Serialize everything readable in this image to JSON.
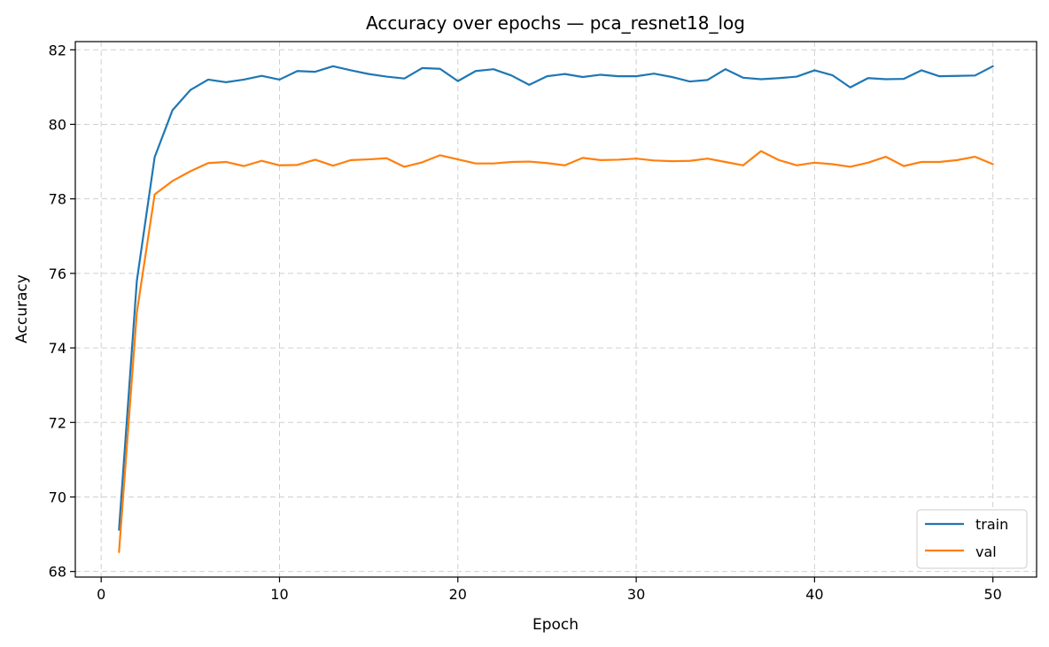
{
  "chart_data": {
    "type": "line",
    "title": "Accuracy over epochs — pca_resnet18_log",
    "xlabel": "Epoch",
    "ylabel": "Accuracy",
    "xlim": [
      -1.45,
      52.45
    ],
    "ylim": [
      67.85,
      82.22
    ],
    "xticks": [
      0,
      10,
      20,
      30,
      40,
      50
    ],
    "yticks": [
      68,
      70,
      72,
      74,
      76,
      78,
      80,
      82
    ],
    "grid": true,
    "legend_position": "lower-right",
    "x": [
      1,
      2,
      3,
      4,
      5,
      6,
      7,
      8,
      9,
      10,
      11,
      12,
      13,
      14,
      15,
      16,
      17,
      18,
      19,
      20,
      21,
      22,
      23,
      24,
      25,
      26,
      27,
      28,
      29,
      30,
      31,
      32,
      33,
      34,
      35,
      36,
      37,
      38,
      39,
      40,
      41,
      42,
      43,
      44,
      45,
      46,
      47,
      48,
      49,
      50
    ],
    "series": [
      {
        "name": "train",
        "color": "#1f77b4",
        "values": [
          69.12,
          75.8,
          79.12,
          80.38,
          80.92,
          81.2,
          81.13,
          81.2,
          81.3,
          81.2,
          81.43,
          81.41,
          81.56,
          81.45,
          81.35,
          81.28,
          81.23,
          81.51,
          81.49,
          81.16,
          81.43,
          81.48,
          81.31,
          81.06,
          81.29,
          81.35,
          81.27,
          81.33,
          81.29,
          81.29,
          81.36,
          81.27,
          81.15,
          81.19,
          81.48,
          81.25,
          81.21,
          81.24,
          81.28,
          81.45,
          81.32,
          80.99,
          81.24,
          81.21,
          81.22,
          81.45,
          81.29,
          81.3,
          81.31,
          81.56
        ]
      },
      {
        "name": "val",
        "color": "#ff7f0e",
        "values": [
          68.52,
          74.95,
          78.12,
          78.48,
          78.74,
          78.96,
          78.99,
          78.88,
          79.02,
          78.9,
          78.91,
          79.05,
          78.89,
          79.04,
          79.06,
          79.09,
          78.86,
          78.98,
          79.17,
          79.06,
          78.95,
          78.95,
          78.99,
          79.0,
          78.96,
          78.9,
          79.1,
          79.04,
          79.05,
          79.08,
          79.03,
          79.01,
          79.02,
          79.08,
          78.99,
          78.9,
          79.28,
          79.04,
          78.9,
          78.97,
          78.93,
          78.86,
          78.97,
          79.13,
          78.88,
          78.99,
          78.99,
          79.04,
          79.13,
          78.93
        ]
      }
    ]
  }
}
